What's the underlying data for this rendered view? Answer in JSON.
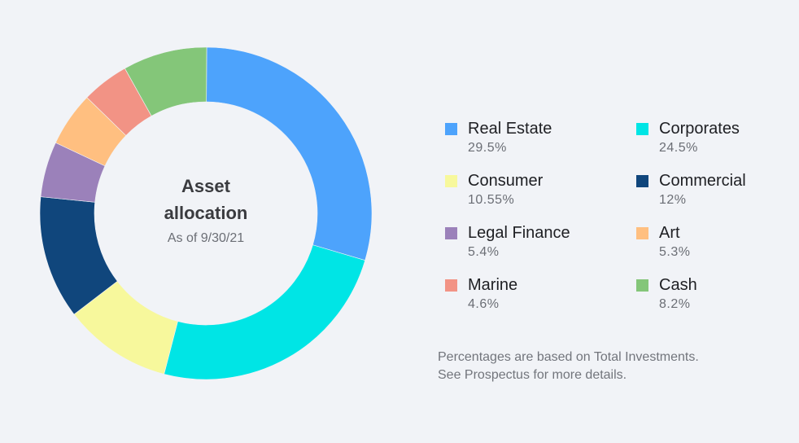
{
  "chart_data": {
    "type": "pie",
    "subtype": "donut",
    "title": "Asset allocation",
    "subtitle": "As of 9/30/21",
    "categories": [
      "Real Estate",
      "Corporates",
      "Consumer",
      "Commercial",
      "Legal Finance",
      "Art",
      "Marine",
      "Cash"
    ],
    "values": [
      29.5,
      24.5,
      10.55,
      12,
      5.4,
      5.3,
      4.6,
      8.2
    ],
    "value_labels": [
      "29.5%",
      "24.5%",
      "10.55%",
      "12%",
      "5.4%",
      "5.3%",
      "4.6%",
      "8.2%"
    ],
    "colors": [
      "#4da3fc",
      "#00e5e5",
      "#f7f89c",
      "#10467c",
      "#9b81ba",
      "#ffbf80",
      "#f29385",
      "#84c679"
    ],
    "legend_position": "right",
    "footnote": "Percentages are based on Total Investments. See Prospectus for more details."
  },
  "center": {
    "title_line1": "Asset",
    "title_line2": "allocation",
    "subtitle": "As of 9/30/21"
  },
  "legend": [
    {
      "label": "Real Estate",
      "value": "29.5%",
      "color": "#4da3fc"
    },
    {
      "label": "Corporates",
      "value": "24.5%",
      "color": "#00e5e5"
    },
    {
      "label": "Consumer",
      "value": "10.55%",
      "color": "#f7f89c"
    },
    {
      "label": "Commercial",
      "value": "12%",
      "color": "#10467c"
    },
    {
      "label": "Legal Finance",
      "value": "5.4%",
      "color": "#9b81ba"
    },
    {
      "label": "Art",
      "value": "5.3%",
      "color": "#ffbf80"
    },
    {
      "label": "Marine",
      "value": "4.6%",
      "color": "#f29385"
    },
    {
      "label": "Cash",
      "value": "8.2%",
      "color": "#84c679"
    }
  ],
  "footnote": {
    "line1": "Percentages are based on Total Investments.",
    "line2": "See Prospectus for more details."
  }
}
